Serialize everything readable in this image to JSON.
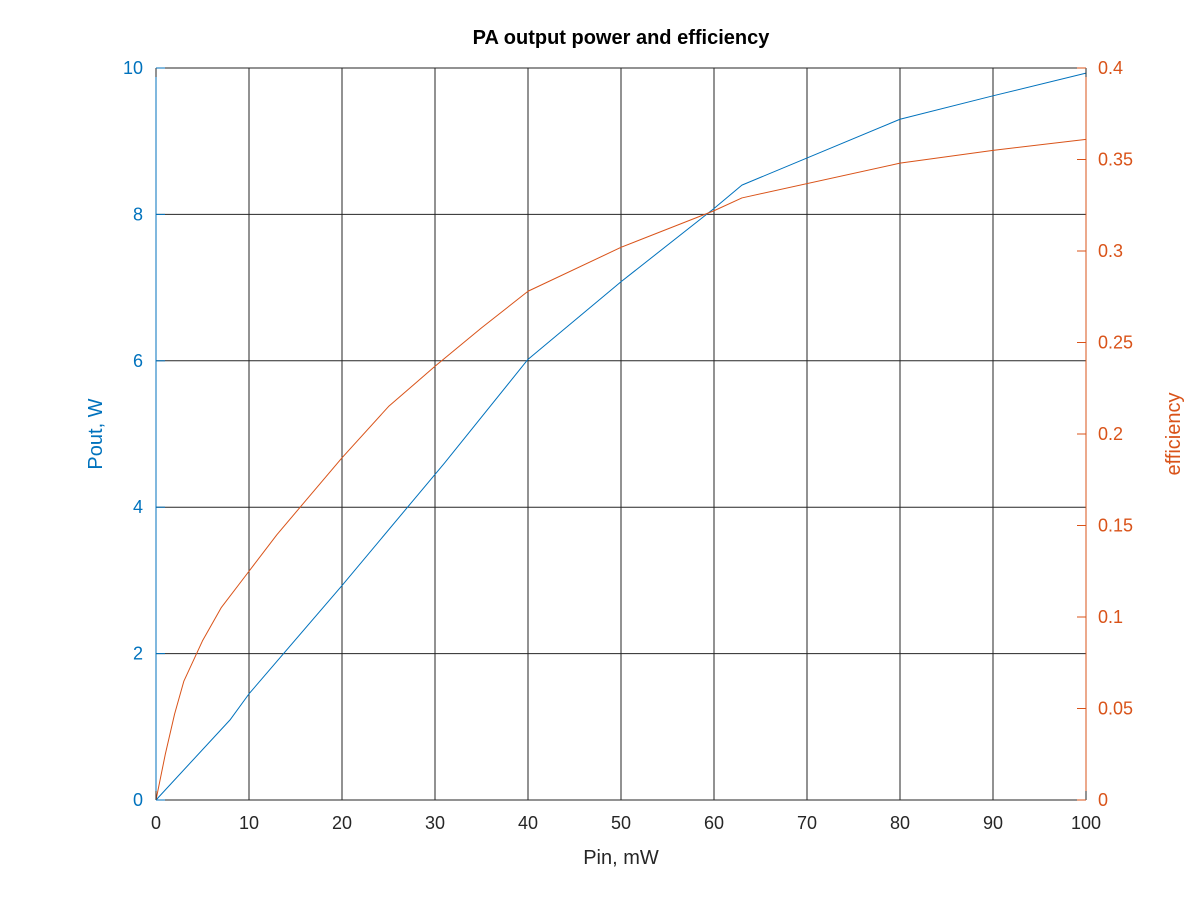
{
  "chart_data": {
    "type": "line",
    "title": "PA output power and efficiency",
    "xlabel": "Pin, mW",
    "ylabel_left": "Pout, W",
    "ylabel_right": "efficiency",
    "xlim": [
      0,
      100
    ],
    "ylim_left": [
      0,
      10
    ],
    "ylim_right": [
      0,
      0.4
    ],
    "xticks": [
      "0",
      "10",
      "20",
      "30",
      "40",
      "50",
      "60",
      "70",
      "80",
      "90",
      "100"
    ],
    "yticks_left": [
      "0",
      "2",
      "4",
      "6",
      "8",
      "10"
    ],
    "yticks_right": [
      "0",
      "0.05",
      "0.1",
      "0.15",
      "0.2",
      "0.25",
      "0.3",
      "0.35",
      "0.4"
    ],
    "grid": true,
    "colors": {
      "left": "#0072BD",
      "right": "#D95319",
      "grid": "#262626"
    },
    "series": [
      {
        "axis": "left",
        "x": [
          0,
          8,
          10,
          20,
          31,
          40,
          50,
          60,
          63,
          80,
          90,
          100
        ],
        "y": [
          0,
          1.1,
          1.45,
          2.93,
          4.6,
          6.02,
          7.08,
          8.08,
          8.4,
          9.3,
          9.62,
          9.93
        ]
      },
      {
        "axis": "right",
        "x": [
          0,
          1,
          2,
          3,
          5,
          7,
          10,
          13,
          16,
          20,
          25,
          30,
          35,
          40,
          50,
          60,
          63,
          80,
          90,
          100
        ],
        "y": [
          0,
          0.025,
          0.047,
          0.065,
          0.087,
          0.105,
          0.125,
          0.145,
          0.163,
          0.187,
          0.215,
          0.237,
          0.258,
          0.278,
          0.302,
          0.322,
          0.329,
          0.348,
          0.355,
          0.361
        ]
      }
    ]
  }
}
